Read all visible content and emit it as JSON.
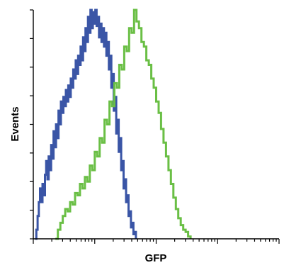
{
  "chart_data": {
    "type": "line",
    "xlabel": "GFP",
    "ylabel": "Events",
    "x_scale": "log",
    "xlim": [
      0,
      4
    ],
    "ylim": [
      0,
      100
    ],
    "grid": false,
    "legend": "none",
    "series": [
      {
        "color": "#3a55a6",
        "points": [
          [
            0.03,
            0
          ],
          [
            0.05,
            4
          ],
          [
            0.07,
            10
          ],
          [
            0.09,
            16
          ],
          [
            0.11,
            22
          ],
          [
            0.13,
            16
          ],
          [
            0.15,
            24
          ],
          [
            0.17,
            19
          ],
          [
            0.19,
            28
          ],
          [
            0.21,
            34
          ],
          [
            0.23,
            26
          ],
          [
            0.25,
            36
          ],
          [
            0.27,
            30
          ],
          [
            0.29,
            41
          ],
          [
            0.31,
            35
          ],
          [
            0.33,
            47
          ],
          [
            0.35,
            40
          ],
          [
            0.37,
            50
          ],
          [
            0.39,
            44
          ],
          [
            0.41,
            56
          ],
          [
            0.43,
            50
          ],
          [
            0.45,
            60
          ],
          [
            0.47,
            55
          ],
          [
            0.49,
            62
          ],
          [
            0.51,
            58
          ],
          [
            0.53,
            65
          ],
          [
            0.55,
            60
          ],
          [
            0.57,
            67
          ],
          [
            0.59,
            62
          ],
          [
            0.61,
            70
          ],
          [
            0.63,
            66
          ],
          [
            0.65,
            74
          ],
          [
            0.67,
            70
          ],
          [
            0.69,
            78
          ],
          [
            0.71,
            72
          ],
          [
            0.73,
            80
          ],
          [
            0.75,
            76
          ],
          [
            0.77,
            84
          ],
          [
            0.79,
            78
          ],
          [
            0.81,
            88
          ],
          [
            0.83,
            82
          ],
          [
            0.85,
            92
          ],
          [
            0.87,
            86
          ],
          [
            0.89,
            97
          ],
          [
            0.91,
            90
          ],
          [
            0.93,
            100
          ],
          [
            0.95,
            92
          ],
          [
            0.97,
            99
          ],
          [
            0.99,
            94
          ],
          [
            1.01,
            100
          ],
          [
            1.03,
            93
          ],
          [
            1.05,
            97
          ],
          [
            1.07,
            88
          ],
          [
            1.09,
            94
          ],
          [
            1.11,
            86
          ],
          [
            1.13,
            92
          ],
          [
            1.15,
            84
          ],
          [
            1.17,
            90
          ],
          [
            1.19,
            80
          ],
          [
            1.21,
            86
          ],
          [
            1.23,
            74
          ],
          [
            1.25,
            80
          ],
          [
            1.27,
            66
          ],
          [
            1.29,
            72
          ],
          [
            1.31,
            56
          ],
          [
            1.33,
            62
          ],
          [
            1.35,
            46
          ],
          [
            1.37,
            52
          ],
          [
            1.39,
            38
          ],
          [
            1.41,
            44
          ],
          [
            1.43,
            30
          ],
          [
            1.45,
            34
          ],
          [
            1.47,
            22
          ],
          [
            1.49,
            26
          ],
          [
            1.51,
            16
          ],
          [
            1.53,
            19
          ],
          [
            1.55,
            10
          ],
          [
            1.57,
            12
          ],
          [
            1.59,
            5
          ],
          [
            1.61,
            7
          ],
          [
            1.63,
            2
          ],
          [
            1.65,
            3
          ],
          [
            1.67,
            0
          ]
        ]
      },
      {
        "color": "#6abf45",
        "points": [
          [
            0.36,
            0
          ],
          [
            0.4,
            4
          ],
          [
            0.44,
            7
          ],
          [
            0.48,
            10
          ],
          [
            0.52,
            13
          ],
          [
            0.56,
            12
          ],
          [
            0.6,
            16
          ],
          [
            0.64,
            15
          ],
          [
            0.68,
            20
          ],
          [
            0.72,
            19
          ],
          [
            0.76,
            24
          ],
          [
            0.8,
            22
          ],
          [
            0.84,
            27
          ],
          [
            0.88,
            25
          ],
          [
            0.92,
            32
          ],
          [
            0.96,
            30
          ],
          [
            1.0,
            38
          ],
          [
            1.04,
            36
          ],
          [
            1.08,
            44
          ],
          [
            1.12,
            42
          ],
          [
            1.16,
            52
          ],
          [
            1.2,
            50
          ],
          [
            1.24,
            60
          ],
          [
            1.28,
            58
          ],
          [
            1.32,
            68
          ],
          [
            1.36,
            66
          ],
          [
            1.4,
            76
          ],
          [
            1.44,
            74
          ],
          [
            1.48,
            84
          ],
          [
            1.52,
            82
          ],
          [
            1.56,
            92
          ],
          [
            1.6,
            90
          ],
          [
            1.64,
            100
          ],
          [
            1.68,
            95
          ],
          [
            1.72,
            92
          ],
          [
            1.76,
            86
          ],
          [
            1.8,
            84
          ],
          [
            1.84,
            78
          ],
          [
            1.88,
            76
          ],
          [
            1.92,
            70
          ],
          [
            1.96,
            66
          ],
          [
            2.0,
            60
          ],
          [
            2.04,
            55
          ],
          [
            2.08,
            48
          ],
          [
            2.12,
            42
          ],
          [
            2.16,
            36
          ],
          [
            2.2,
            30
          ],
          [
            2.24,
            24
          ],
          [
            2.28,
            18
          ],
          [
            2.32,
            13
          ],
          [
            2.36,
            9
          ],
          [
            2.4,
            6
          ],
          [
            2.44,
            4
          ],
          [
            2.48,
            3
          ],
          [
            2.52,
            1
          ],
          [
            2.56,
            0
          ]
        ]
      }
    ]
  }
}
